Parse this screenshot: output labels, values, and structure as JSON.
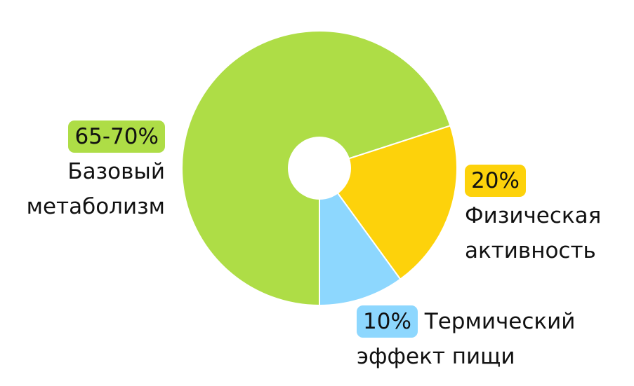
{
  "chart_data": {
    "type": "pie",
    "categories": [
      "Базовый метаболизм",
      "Физическая активность",
      "Термический эффект пищи"
    ],
    "values": [
      70,
      20,
      10
    ],
    "value_labels": [
      "65-70%",
      "20%",
      "10%"
    ],
    "colors": [
      "#aedd46",
      "#fdd20b",
      "#8dd7fe"
    ]
  }
}
